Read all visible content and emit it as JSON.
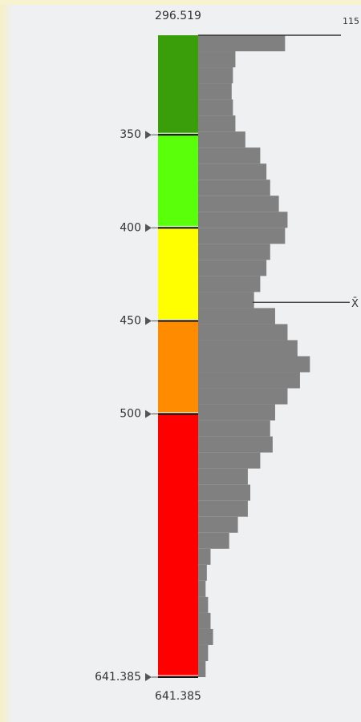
{
  "chart_data": {
    "type": "histogram-ramp",
    "ylim": [
      296.519,
      641.385
    ],
    "yticks": [
      350,
      400,
      450,
      500,
      641.385
    ],
    "class_colors": [
      "#3a9e0a",
      "#5aff0a",
      "#ffff00",
      "#ff8c00",
      "#ff0000"
    ],
    "bins": [
      296.519,
      305.141,
      313.762,
      322.384,
      331.006,
      339.627,
      348.249,
      356.871,
      365.492,
      374.114,
      382.736,
      391.357,
      399.979,
      408.6,
      417.222,
      425.844,
      434.465,
      443.087,
      451.709,
      460.33,
      468.952,
      477.574,
      486.195,
      494.817,
      503.439,
      512.06,
      520.682,
      529.304,
      537.925,
      546.547,
      555.169,
      563.79,
      572.412,
      581.034,
      589.655,
      598.277,
      606.899,
      615.52,
      624.142,
      632.764,
      641.385
    ],
    "counts": [
      70,
      30,
      28,
      27,
      28,
      30,
      38,
      50,
      55,
      58,
      65,
      72,
      70,
      58,
      55,
      50,
      45,
      62,
      72,
      80,
      90,
      82,
      72,
      62,
      58,
      60,
      50,
      40,
      42,
      40,
      32,
      25,
      10,
      7,
      6,
      8,
      10,
      12,
      8,
      6
    ],
    "histogram_color": "#808080",
    "count_max": 115,
    "mean": 440,
    "mean_label": "X̄"
  }
}
